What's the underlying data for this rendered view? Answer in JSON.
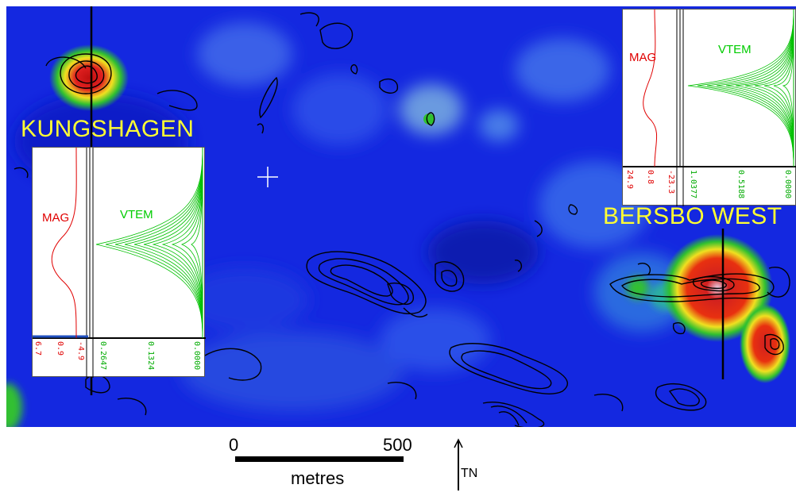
{
  "map": {
    "labels": {
      "kungshagen": "KUNGSHAGEN",
      "bersbo_west": "BERSBO WEST"
    },
    "colors": {
      "background": "#1428e0",
      "anomaly_red": "#e01010",
      "anomaly_yellow": "#f0f020",
      "anomaly_green": "#30c030",
      "label_yellow": "#ffff33"
    }
  },
  "profile_left": {
    "mag_label": "MAG",
    "vtem_label": "VTEM",
    "mag_ticks": [
      "6.7",
      "0.9",
      "-4.9"
    ],
    "vtem_ticks": [
      "0.2647",
      "0.1324",
      "0.0000"
    ]
  },
  "profile_right": {
    "mag_label": "MAG",
    "vtem_label": "VTEM",
    "mag_ticks": [
      "24.9",
      "0.8",
      "-23.3"
    ],
    "vtem_ticks": [
      "1.0377",
      "0.5188",
      "0.0000"
    ]
  },
  "scale_bar": {
    "start": "0",
    "end": "500",
    "unit": "metres"
  },
  "north_arrow": {
    "label": "TN"
  }
}
